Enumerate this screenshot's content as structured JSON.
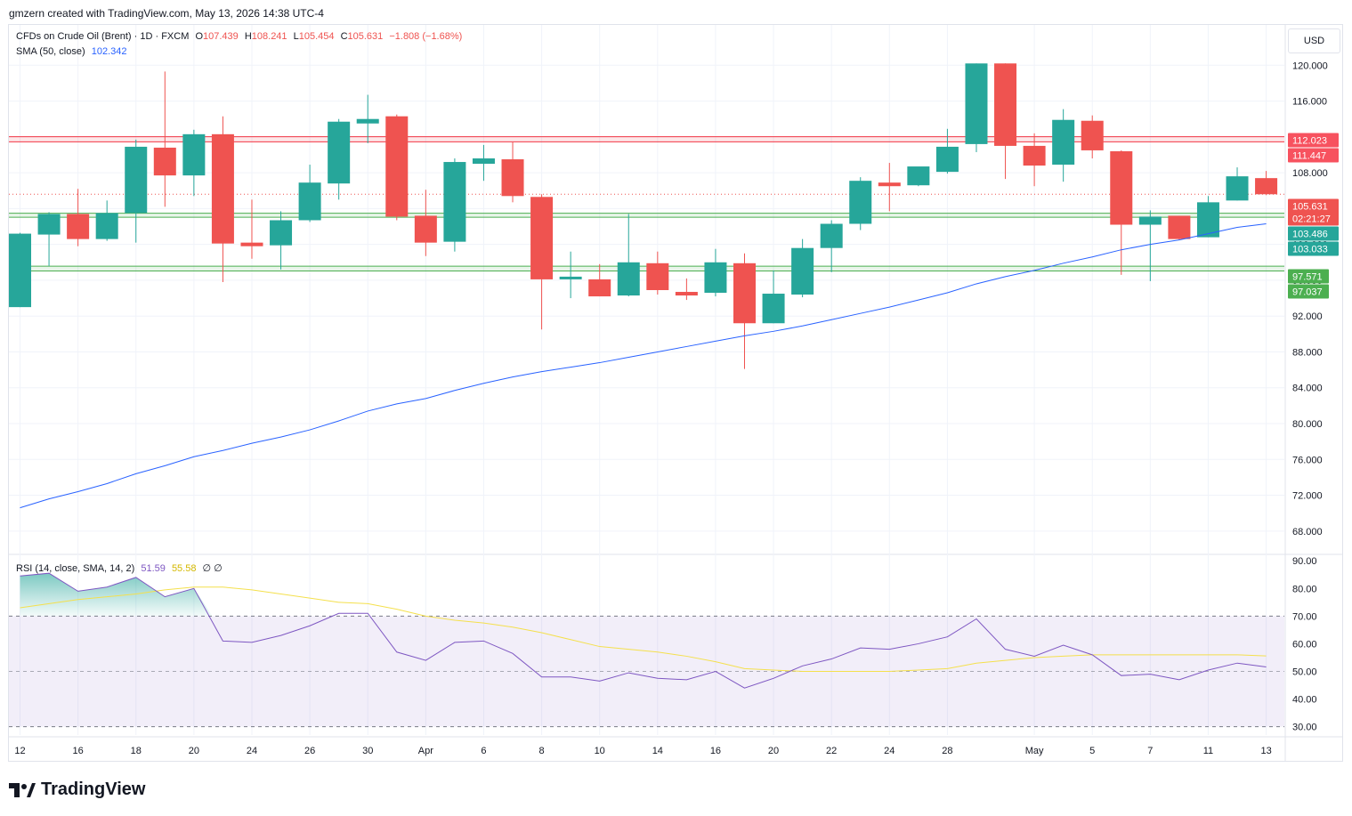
{
  "header": {
    "attribution": "gmzern created with TradingView.com, May 13, 2026 14:38 UTC-4"
  },
  "legend": {
    "symbol": "CFDs on Crude Oil (Brent) · 1D · FXCM",
    "o_label": "O",
    "o": "107.439",
    "h_label": "H",
    "h": "108.241",
    "l_label": "L",
    "l": "105.454",
    "c_label": "C",
    "c": "105.631",
    "change": "−1.808 (−1.68%)",
    "sma_label": "SMA (50, close)",
    "sma_value": "102.342",
    "rsi_label": "RSI (14, close, SMA, 14, 2)",
    "rsi_value": "51.59",
    "rsi_sma_value": "55.58",
    "rsi_extra": "∅ ∅"
  },
  "currency_button": "USD",
  "brand": "TradingView",
  "colors": {
    "up": "#26a69a",
    "down": "#ef5350",
    "sma": "#2962ff",
    "rsi": "#7e57c2",
    "rsi_sma": "#f4e04d",
    "zone_red": "#f23645",
    "zone_green": "#4caf50"
  },
  "chart_data": [
    {
      "type": "candlestick",
      "title": "CFDs on Crude Oil (Brent)",
      "interval": "1D",
      "ylim": [
        65.5,
        124.5
      ],
      "y_ticks": [
        "68.000",
        "72.000",
        "76.000",
        "80.000",
        "84.000",
        "88.000",
        "92.000",
        "96.000",
        "100.000",
        "104.000",
        "108.000",
        "112.000",
        "116.000",
        "120.000"
      ],
      "x_ticks": [
        "12",
        "16",
        "18",
        "20",
        "24",
        "26",
        "30",
        "Apr",
        "6",
        "8",
        "10",
        "14",
        "16",
        "20",
        "22",
        "24",
        "28",
        "May",
        "5",
        "7",
        "11",
        "13"
      ],
      "x_tick_index": [
        0,
        2,
        4,
        6,
        8,
        10,
        12,
        14,
        16,
        18,
        20,
        22,
        24,
        26,
        28,
        30,
        32,
        35,
        37,
        39,
        41,
        43
      ],
      "candles": [
        {
          "o": 93.0,
          "h": 101.3,
          "l": 93.0,
          "c": 101.2
        },
        {
          "o": 101.1,
          "h": 103.6,
          "l": 97.6,
          "c": 103.4
        },
        {
          "o": 103.4,
          "h": 106.2,
          "l": 99.8,
          "c": 100.6
        },
        {
          "o": 100.6,
          "h": 104.9,
          "l": 100.4,
          "c": 103.5
        },
        {
          "o": 103.5,
          "h": 111.7,
          "l": 100.2,
          "c": 110.9
        },
        {
          "o": 110.8,
          "h": 119.3,
          "l": 104.2,
          "c": 107.7
        },
        {
          "o": 107.7,
          "h": 112.8,
          "l": 105.4,
          "c": 112.3
        },
        {
          "o": 112.3,
          "h": 114.3,
          "l": 95.8,
          "c": 100.1
        },
        {
          "o": 100.2,
          "h": 105.0,
          "l": 98.4,
          "c": 99.8
        },
        {
          "o": 99.9,
          "h": 103.7,
          "l": 97.2,
          "c": 102.7
        },
        {
          "o": 102.7,
          "h": 108.9,
          "l": 102.5,
          "c": 106.9
        },
        {
          "o": 106.8,
          "h": 114.0,
          "l": 105.0,
          "c": 113.7
        },
        {
          "o": 113.5,
          "h": 116.7,
          "l": 111.3,
          "c": 114.0
        },
        {
          "o": 114.3,
          "h": 114.5,
          "l": 102.7,
          "c": 103.1
        },
        {
          "o": 103.2,
          "h": 106.1,
          "l": 98.7,
          "c": 100.2
        },
        {
          "o": 100.3,
          "h": 109.6,
          "l": 99.2,
          "c": 109.2
        },
        {
          "o": 109.0,
          "h": 111.1,
          "l": 107.1,
          "c": 109.6
        },
        {
          "o": 109.5,
          "h": 111.4,
          "l": 104.7,
          "c": 105.4
        },
        {
          "o": 105.3,
          "h": 105.6,
          "l": 90.5,
          "c": 96.1
        },
        {
          "o": 96.1,
          "h": 99.2,
          "l": 94.0,
          "c": 96.4
        },
        {
          "o": 96.1,
          "h": 97.8,
          "l": 94.2,
          "c": 94.2
        },
        {
          "o": 94.3,
          "h": 103.4,
          "l": 94.2,
          "c": 98.0
        },
        {
          "o": 97.9,
          "h": 99.2,
          "l": 94.4,
          "c": 94.9
        },
        {
          "o": 94.7,
          "h": 96.2,
          "l": 93.8,
          "c": 94.3
        },
        {
          "o": 94.6,
          "h": 99.5,
          "l": 94.2,
          "c": 98.0
        },
        {
          "o": 97.9,
          "h": 99.0,
          "l": 86.1,
          "c": 91.2
        },
        {
          "o": 91.2,
          "h": 97.1,
          "l": 91.2,
          "c": 94.5
        },
        {
          "o": 94.4,
          "h": 100.6,
          "l": 94.1,
          "c": 99.6
        },
        {
          "o": 99.6,
          "h": 102.7,
          "l": 96.9,
          "c": 102.3
        },
        {
          "o": 102.3,
          "h": 107.5,
          "l": 101.6,
          "c": 107.1
        },
        {
          "o": 106.9,
          "h": 109.1,
          "l": 103.7,
          "c": 106.5
        },
        {
          "o": 106.6,
          "h": 108.6,
          "l": 106.5,
          "c": 108.7
        },
        {
          "o": 108.1,
          "h": 112.9,
          "l": 107.9,
          "c": 110.9
        },
        {
          "o": 111.2,
          "h": 120.2,
          "l": 110.3,
          "c": 120.2
        },
        {
          "o": 120.2,
          "h": 120.2,
          "l": 107.3,
          "c": 111.0
        },
        {
          "o": 111.0,
          "h": 112.4,
          "l": 106.5,
          "c": 108.8
        },
        {
          "o": 108.9,
          "h": 115.1,
          "l": 107.0,
          "c": 113.9
        },
        {
          "o": 113.8,
          "h": 114.4,
          "l": 109.6,
          "c": 110.5
        },
        {
          "o": 110.4,
          "h": 110.5,
          "l": 96.6,
          "c": 102.2
        },
        {
          "o": 102.2,
          "h": 103.8,
          "l": 95.9,
          "c": 103.1
        },
        {
          "o": 103.2,
          "h": 103.2,
          "l": 100.5,
          "c": 100.6
        },
        {
          "o": 100.8,
          "h": 105.4,
          "l": 100.8,
          "c": 104.7
        },
        {
          "o": 104.9,
          "h": 108.6,
          "l": 104.9,
          "c": 107.6
        },
        {
          "o": 107.4,
          "h": 108.2,
          "l": 105.5,
          "c": 105.6
        }
      ],
      "sma50": [
        70.6,
        71.6,
        72.4,
        73.3,
        74.4,
        75.3,
        76.3,
        77.0,
        77.8,
        78.5,
        79.3,
        80.3,
        81.4,
        82.2,
        82.8,
        83.7,
        84.5,
        85.2,
        85.8,
        86.3,
        86.8,
        87.4,
        88.0,
        88.6,
        89.2,
        89.8,
        90.3,
        90.9,
        91.6,
        92.3,
        93.0,
        93.8,
        94.6,
        95.6,
        96.4,
        97.1,
        97.9,
        98.6,
        99.4,
        100.0,
        100.5,
        101.2,
        101.9,
        102.3
      ],
      "price_labels": [
        {
          "value": "112.023",
          "kind": "red-line"
        },
        {
          "value": "111.447",
          "kind": "red-line"
        },
        {
          "value": "105.631",
          "kind": "last"
        },
        {
          "value": "02:21:27",
          "kind": "countdown"
        },
        {
          "value": "103.486",
          "kind": "green-line"
        },
        {
          "value": "103.033",
          "kind": "green-line"
        },
        {
          "value": "97.571",
          "kind": "green-line"
        },
        {
          "value": "97.037",
          "kind": "green-line"
        }
      ],
      "zones": [
        {
          "name": "resistance",
          "top": 112.023,
          "bottom": 111.447
        },
        {
          "name": "support-upper",
          "top": 103.486,
          "bottom": 103.033
        },
        {
          "name": "support-lower",
          "top": 97.571,
          "bottom": 97.037
        }
      ]
    },
    {
      "type": "line",
      "title": "RSI (14, close, SMA, 14, 2)",
      "ylim": [
        27,
        92
      ],
      "y_ticks": [
        "30.00",
        "40.00",
        "50.00",
        "60.00",
        "70.00",
        "80.00",
        "90.00"
      ],
      "bands": {
        "upper": 70,
        "middle": 50,
        "lower": 30
      },
      "series": [
        {
          "name": "RSI",
          "values": [
            84.5,
            85.5,
            79.0,
            80.5,
            84.0,
            77.0,
            80.0,
            61.0,
            60.5,
            63.0,
            66.5,
            71.0,
            71.0,
            57.0,
            54.0,
            60.5,
            61.0,
            56.5,
            48.0,
            48.0,
            46.5,
            49.5,
            47.5,
            47.0,
            50.0,
            44.0,
            47.5,
            52.0,
            54.5,
            58.5,
            58.0,
            60.0,
            62.5,
            69.0,
            58.0,
            55.5,
            59.5,
            56.0,
            48.5,
            49.0,
            47.0,
            50.5,
            53.0,
            51.6
          ]
        },
        {
          "name": "RSI-based MA",
          "values": [
            73.0,
            74.5,
            76.0,
            77.0,
            78.0,
            79.5,
            80.5,
            80.5,
            79.5,
            78.0,
            76.5,
            75.0,
            74.5,
            72.5,
            70.0,
            68.5,
            67.5,
            66.0,
            64.0,
            61.5,
            59.0,
            58.0,
            57.0,
            55.5,
            53.5,
            51.0,
            50.5,
            50.0,
            50.0,
            50.0,
            50.0,
            50.5,
            51.0,
            53.0,
            54.0,
            55.0,
            55.5,
            56.0,
            56.0,
            56.0,
            56.0,
            56.0,
            56.0,
            55.6
          ]
        }
      ]
    }
  ]
}
